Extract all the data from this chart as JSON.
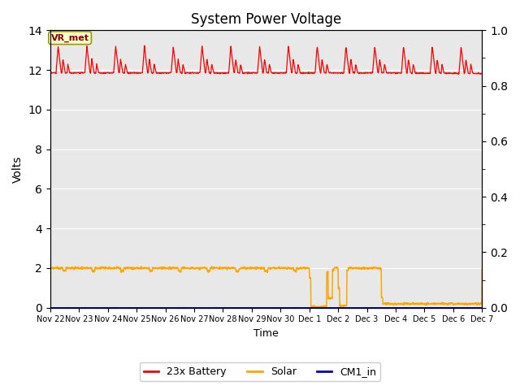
{
  "title": "System Power Voltage",
  "xlabel": "Time",
  "ylabel": "Volts",
  "ylim_left": [
    0,
    14
  ],
  "ylim_right": [
    0.0,
    1.0
  ],
  "yticks_left": [
    0,
    2,
    4,
    6,
    8,
    10,
    12,
    14
  ],
  "yticks_right": [
    0.0,
    0.2,
    0.4,
    0.6,
    0.8,
    1.0
  ],
  "background_color": "#e8e8e8",
  "fig_background": "#ffffff",
  "grid_color": "#ffffff",
  "annotation_text": "VR_met",
  "annotation_color": "#8b0000",
  "annotation_bg": "#ffffcc",
  "annotation_edge": "#999900",
  "line_colors": {
    "battery": "#ff0000",
    "solar": "#ffa500",
    "cm1": "#0000cd"
  },
  "legend_labels": [
    "23x Battery",
    "Solar",
    "CM1_in"
  ],
  "xtick_labels": [
    "Nov 22",
    "Nov 23",
    "Nov 24",
    "Nov 25",
    "Nov 26",
    "Nov 27",
    "Nov 28",
    "Nov 29",
    "Nov 30",
    "Dec 1",
    "Dec 2",
    "Dec 3",
    "Dec 4",
    "Dec 5",
    "Dec 6",
    "Dec 7"
  ],
  "n_days": 15
}
